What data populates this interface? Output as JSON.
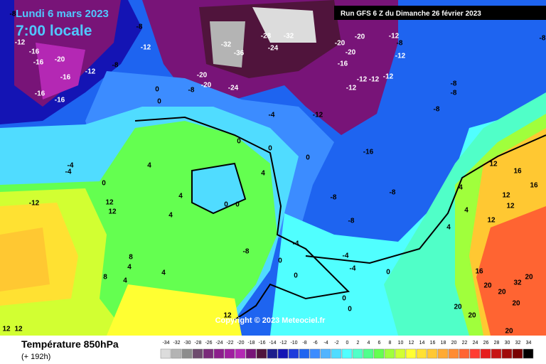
{
  "header": {
    "date": "Lundi 6 mars 2023",
    "time": "7:00 locale",
    "run": "Run GFS 6 Z du Dimanche 26 février 2023"
  },
  "copyright": "Copyright © 2023 Meteociel.fr",
  "footer": {
    "title": "Température 850hPa",
    "lead": "(+ 192h)"
  },
  "legend": {
    "values": [
      -34,
      -32,
      -30,
      -28,
      -26,
      -24,
      -22,
      -20,
      -18,
      -16,
      -14,
      -12,
      -10,
      -8,
      -6,
      -4,
      -2,
      0,
      2,
      4,
      6,
      8,
      10,
      12,
      14,
      16,
      18,
      20,
      22,
      24,
      26,
      28,
      30,
      32,
      34
    ],
    "colors": [
      "#dcdcdc",
      "#b4b4b4",
      "#8c8c8c",
      "#6e4b6e",
      "#7a2a7a",
      "#8c1e8c",
      "#a01ea0",
      "#b428b4",
      "#781478",
      "#50143c",
      "#1e1e8c",
      "#1414b4",
      "#1e3cdc",
      "#1e64f0",
      "#3c8cff",
      "#50b4ff",
      "#50dcff",
      "#50ffff",
      "#50ffc8",
      "#50ff8c",
      "#64ff50",
      "#a0ff3c",
      "#d2ff32",
      "#ffff32",
      "#ffe132",
      "#ffc832",
      "#ffaa32",
      "#ff8c32",
      "#ff6432",
      "#ff3c32",
      "#e61e1e",
      "#c81414",
      "#a00a0a",
      "#780000",
      "#000000"
    ]
  },
  "map_labels": [
    -8,
    -8,
    -12,
    -12,
    -16,
    -20,
    -16,
    -16,
    -12,
    -8,
    -16,
    -16,
    -32,
    -36,
    -28,
    -32,
    -24,
    -20,
    -20,
    -24,
    -8,
    0,
    0,
    -20,
    -20,
    -20,
    -16,
    -12,
    -8,
    -12,
    -12,
    -12,
    -12,
    -12,
    -8,
    -8,
    -8,
    -8,
    -4,
    -12,
    -16,
    0,
    0,
    0,
    -4,
    -4,
    4,
    0,
    -12,
    12,
    12,
    4,
    4,
    0,
    0,
    4,
    -8,
    -8,
    -8,
    -4,
    -8,
    8,
    4,
    8,
    4,
    4,
    0,
    0,
    -4,
    -4,
    0,
    0,
    0,
    4,
    4,
    4,
    12,
    16,
    16,
    12,
    12,
    12,
    16,
    20,
    32,
    20,
    20,
    20,
    20,
    12,
    12,
    12,
    20,
    20
  ]
}
